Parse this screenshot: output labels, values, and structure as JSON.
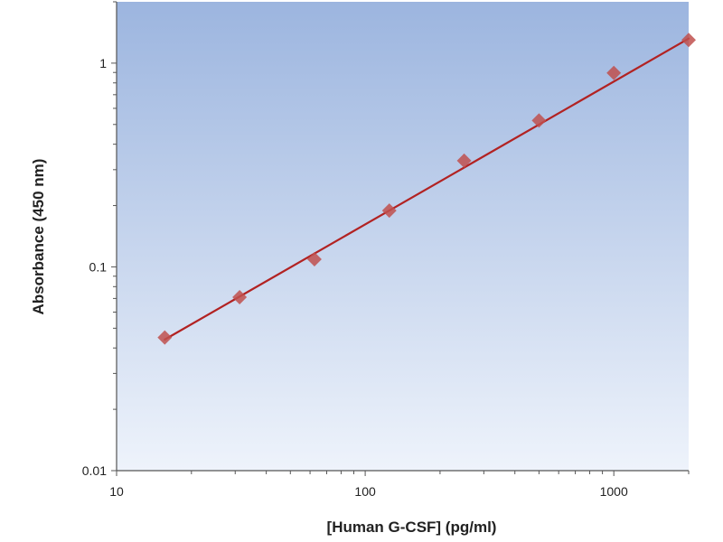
{
  "chart_data": {
    "type": "scatter",
    "title": "",
    "xlabel": "[Human G-CSF] (pg/ml)",
    "ylabel": "Absorbance (450 nm)",
    "x_scale": "log",
    "y_scale": "log",
    "xlim": [
      10,
      2000
    ],
    "ylim": [
      0.01,
      2
    ],
    "x_ticks": [
      10,
      100,
      1000
    ],
    "x_tick_labels": [
      "10",
      "100",
      "1000"
    ],
    "y_ticks": [
      0.01,
      0.1,
      1
    ],
    "y_tick_labels": [
      "0.01",
      "0.1",
      "1"
    ],
    "grid": false,
    "legend": "none",
    "series": [
      {
        "marker": "diamond",
        "color": "#c0504d",
        "x": [
          15.625,
          31.25,
          62.5,
          125,
          250,
          500,
          1000,
          2000
        ],
        "y": [
          0.045,
          0.071,
          0.109,
          0.189,
          0.332,
          0.523,
          0.895,
          1.3
        ]
      }
    ],
    "fit_line": {
      "type": "power",
      "color": "#b22222",
      "x": [
        15.625,
        2000
      ],
      "y": [
        0.044,
        1.32
      ]
    },
    "background_gradient": [
      "#9cb5df",
      "#eef3fb"
    ]
  }
}
